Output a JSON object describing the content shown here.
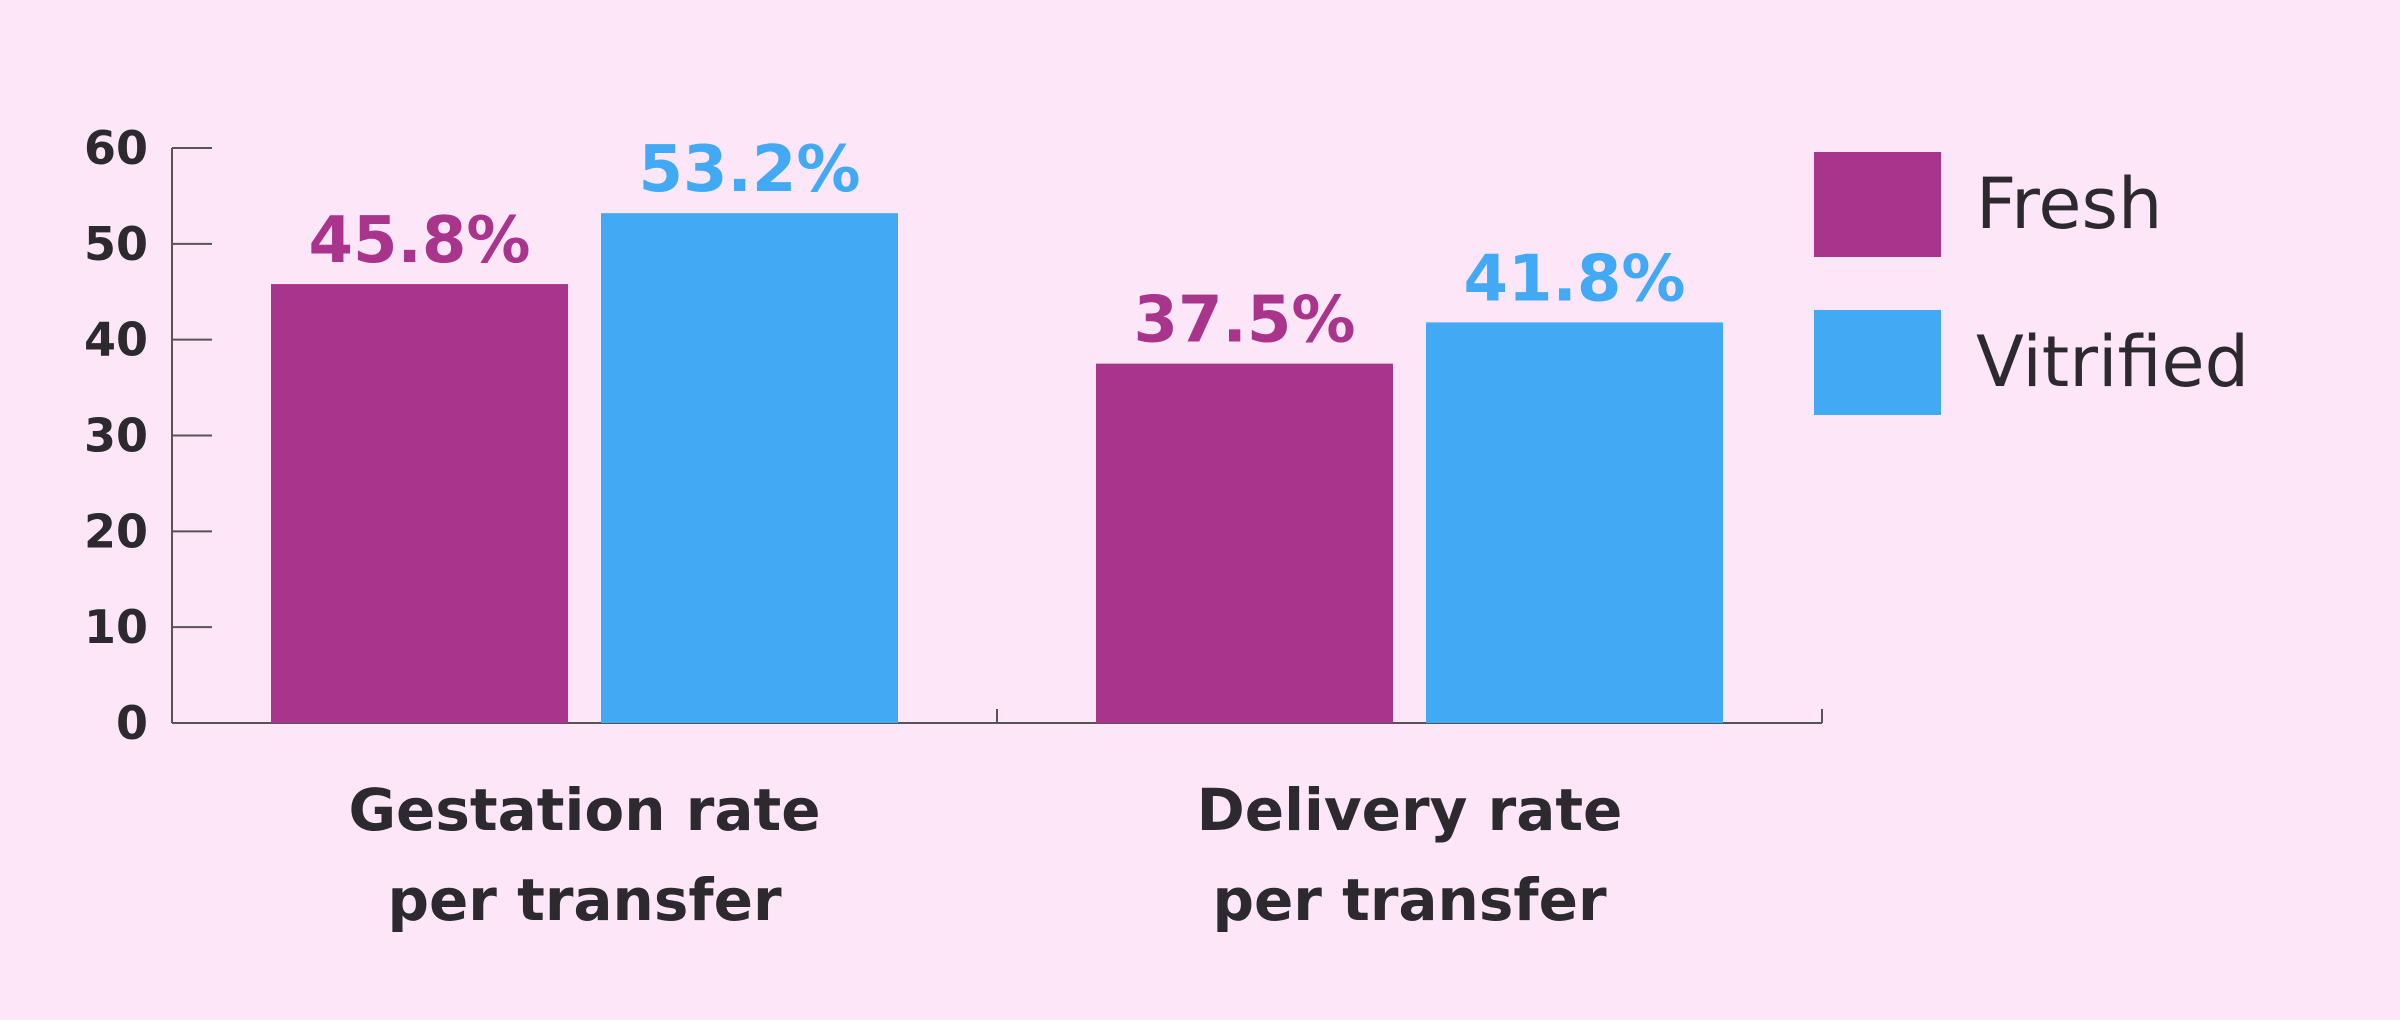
{
  "colors": {
    "background": "#fde6f8",
    "axis": "#555555",
    "text": "#2d2a2f"
  },
  "chart_data": {
    "type": "bar",
    "categories": [
      [
        "Gestation rate",
        "per transfer"
      ],
      [
        "Delivery rate",
        "per transfer"
      ]
    ],
    "series": [
      {
        "name": "Fresh",
        "color": "#a8348b",
        "values": [
          45.8,
          37.5
        ],
        "labels": [
          "45.8%",
          "37.5%"
        ]
      },
      {
        "name": "Vitrified",
        "color": "#42a9f5",
        "values": [
          53.2,
          41.8
        ],
        "labels": [
          "53.2%",
          "41.8%"
        ]
      }
    ],
    "ylim": [
      0,
      60
    ],
    "yticks": [
      0,
      10,
      20,
      30,
      40,
      50,
      60
    ],
    "title": "",
    "xlabel": "",
    "ylabel": "",
    "grid": false,
    "legend_position": "top-right"
  }
}
